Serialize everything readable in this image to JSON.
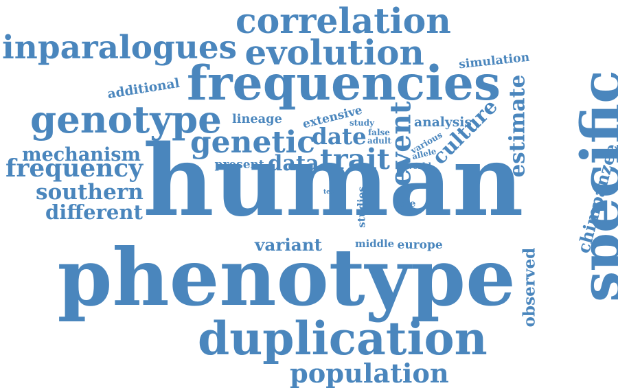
{
  "cloud": {
    "color": "#4a86bd",
    "words": [
      {
        "id": "human",
        "text": "human"
      },
      {
        "id": "phenotype",
        "text": "phenotype"
      },
      {
        "id": "specific",
        "text": "specific"
      },
      {
        "id": "frequencies",
        "text": "frequencies"
      },
      {
        "id": "duplication",
        "text": "duplication"
      },
      {
        "id": "correlation",
        "text": "correlation"
      },
      {
        "id": "evolution",
        "text": "evolution"
      },
      {
        "id": "inparalogues",
        "text": "inparalogues"
      },
      {
        "id": "genotype",
        "text": "genotype"
      },
      {
        "id": "genetic",
        "text": "genetic"
      },
      {
        "id": "population",
        "text": "population"
      },
      {
        "id": "trait",
        "text": "trait"
      },
      {
        "id": "date",
        "text": "date"
      },
      {
        "id": "data",
        "text": "data"
      },
      {
        "id": "event",
        "text": "event"
      },
      {
        "id": "culture",
        "text": "culture"
      },
      {
        "id": "estimate",
        "text": "estimate"
      },
      {
        "id": "chimpanzee",
        "text": "chimpanzee"
      },
      {
        "id": "observed",
        "text": "observed"
      },
      {
        "id": "mechanism",
        "text": "mechanism"
      },
      {
        "id": "frequency",
        "text": "frequency"
      },
      {
        "id": "southern",
        "text": "southern"
      },
      {
        "id": "different",
        "text": "different"
      },
      {
        "id": "additional",
        "text": "additional"
      },
      {
        "id": "simulation",
        "text": "simulation"
      },
      {
        "id": "lineage",
        "text": "lineage"
      },
      {
        "id": "extensive",
        "text": "extensive"
      },
      {
        "id": "analysis",
        "text": "analysis"
      },
      {
        "id": "variant",
        "text": "variant"
      },
      {
        "id": "present",
        "text": "present"
      },
      {
        "id": "various",
        "text": "various"
      },
      {
        "id": "study",
        "text": "study"
      },
      {
        "id": "false",
        "text": "false"
      },
      {
        "id": "adult",
        "text": "adult"
      },
      {
        "id": "allele",
        "text": "allele"
      },
      {
        "id": "world",
        "text": "world"
      },
      {
        "id": "test",
        "text": "test"
      },
      {
        "id": "studies",
        "text": "studies"
      },
      {
        "id": "role",
        "text": "role"
      },
      {
        "id": "middle",
        "text": "middle"
      },
      {
        "id": "europe",
        "text": "europe"
      }
    ]
  }
}
